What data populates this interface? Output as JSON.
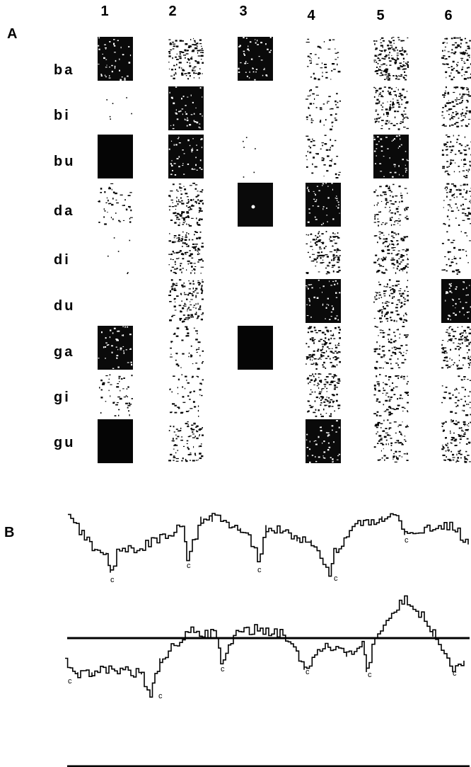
{
  "panel_a": {
    "letter": "A",
    "columns": [
      "1",
      "2",
      "3",
      "4",
      "5",
      "6"
    ],
    "rows": [
      "ba",
      "bi",
      "bu",
      "da",
      "di",
      "du",
      "ga",
      "gi",
      "gu"
    ],
    "grid": [
      [
        "dark",
        "medium",
        "dark",
        "light",
        "medium-dark",
        "medium"
      ],
      [
        "faint",
        "dark",
        "none",
        "light",
        "medium",
        "medium"
      ],
      [
        "solid",
        "dark",
        "faint",
        "light",
        "dark",
        "medium-light"
      ],
      [
        "light",
        "medium",
        "dark-spot",
        "dark",
        "medium-light",
        "medium-light"
      ],
      [
        "faint",
        "medium",
        "none",
        "medium",
        "medium",
        "light"
      ],
      [
        "none",
        "medium",
        "none",
        "dark",
        "medium",
        "dark"
      ],
      [
        "dark",
        "light",
        "solid",
        "medium",
        "medium-light",
        "medium"
      ],
      [
        "light",
        "light",
        "none",
        "medium",
        "medium-light",
        "light"
      ],
      [
        "solid",
        "medium-light",
        "none",
        "dark",
        "medium-light",
        "medium"
      ]
    ]
  },
  "panel_b": {
    "letter": "B",
    "marker": "c"
  },
  "colors": {
    "ink": "#000000",
    "paper": "#ffffff"
  }
}
